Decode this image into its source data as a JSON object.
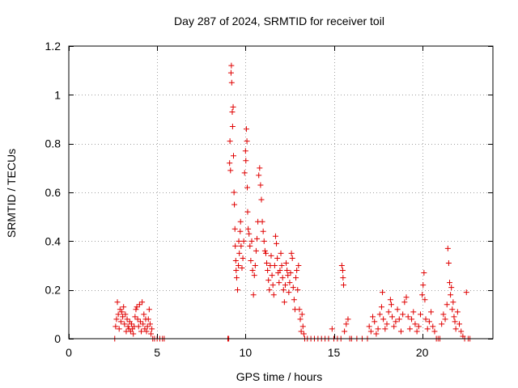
{
  "chart_data": {
    "type": "scatter",
    "title": "Day 287 of 2024, SRMTID for receiver toil",
    "xlabel": "GPS time / hours",
    "ylabel": "SRMTID / TECUs",
    "xlim": [
      0,
      24
    ],
    "ylim": [
      0,
      1.2
    ],
    "xticks": [
      0,
      5,
      10,
      15,
      20
    ],
    "xtick_labels": [
      "0",
      "5",
      "10",
      "15",
      "20"
    ],
    "yticks": [
      0,
      0.2,
      0.4,
      0.6,
      0.8,
      1.0,
      1.2
    ],
    "ytick_labels": [
      "0",
      "0.2",
      "0.4",
      "0.6",
      "0.8",
      "1",
      "1.2"
    ],
    "grid": true,
    "marker": "plus",
    "series": [
      {
        "name": "SRMTID",
        "color": "#e00000",
        "points": [
          [
            2.6,
            0.0
          ],
          [
            2.65,
            0.05
          ],
          [
            2.7,
            0.08
          ],
          [
            2.75,
            0.15
          ],
          [
            2.8,
            0.1
          ],
          [
            2.85,
            0.04
          ],
          [
            2.9,
            0.12
          ],
          [
            2.95,
            0.07
          ],
          [
            3.0,
            0.11
          ],
          [
            3.05,
            0.09
          ],
          [
            3.1,
            0.13
          ],
          [
            3.15,
            0.06
          ],
          [
            3.2,
            0.1
          ],
          [
            3.25,
            0.03
          ],
          [
            3.3,
            0.08
          ],
          [
            3.35,
            0.05
          ],
          [
            3.4,
            0.04
          ],
          [
            3.45,
            0.07
          ],
          [
            3.5,
            0.03
          ],
          [
            3.55,
            0.06
          ],
          [
            3.6,
            0.04
          ],
          [
            3.65,
            0.02
          ],
          [
            3.7,
            0.05
          ],
          [
            3.75,
            0.09
          ],
          [
            3.8,
            0.12
          ],
          [
            3.85,
            0.13
          ],
          [
            3.9,
            0.08
          ],
          [
            3.95,
            0.05
          ],
          [
            4.0,
            0.14
          ],
          [
            4.05,
            0.07
          ],
          [
            4.1,
            0.03
          ],
          [
            4.15,
            0.15
          ],
          [
            4.2,
            0.06
          ],
          [
            4.25,
            0.1
          ],
          [
            4.3,
            0.04
          ],
          [
            4.35,
            0.08
          ],
          [
            4.4,
            0.03
          ],
          [
            4.45,
            0.05
          ],
          [
            4.5,
            0.08
          ],
          [
            4.55,
            0.12
          ],
          [
            4.6,
            0.06
          ],
          [
            4.65,
            0.02
          ],
          [
            4.7,
            0.04
          ],
          [
            4.75,
            0.0
          ],
          [
            4.85,
            0.0
          ],
          [
            5.0,
            0.0
          ],
          [
            5.15,
            0.0
          ],
          [
            5.3,
            0.0
          ],
          [
            5.4,
            0.0
          ],
          [
            9.0,
            0.0
          ],
          [
            9.05,
            0.0
          ],
          [
            9.1,
            0.72
          ],
          [
            9.12,
            0.81
          ],
          [
            9.15,
            0.69
          ],
          [
            9.18,
            1.09
          ],
          [
            9.2,
            1.12
          ],
          [
            9.22,
            1.05
          ],
          [
            9.25,
            0.93
          ],
          [
            9.27,
            0.87
          ],
          [
            9.3,
            0.95
          ],
          [
            9.32,
            0.75
          ],
          [
            9.35,
            0.6
          ],
          [
            9.37,
            0.55
          ],
          [
            9.4,
            0.45
          ],
          [
            9.42,
            0.38
          ],
          [
            9.45,
            0.32
          ],
          [
            9.47,
            0.28
          ],
          [
            9.5,
            0.25
          ],
          [
            9.55,
            0.2
          ],
          [
            9.6,
            0.3
          ],
          [
            9.62,
            0.4
          ],
          [
            9.65,
            0.35
          ],
          [
            9.7,
            0.44
          ],
          [
            9.72,
            0.48
          ],
          [
            9.75,
            0.38
          ],
          [
            9.8,
            0.29
          ],
          [
            9.85,
            0.33
          ],
          [
            9.9,
            0.4
          ],
          [
            9.95,
            0.68
          ],
          [
            10.0,
            0.77
          ],
          [
            10.02,
            0.73
          ],
          [
            10.05,
            0.86
          ],
          [
            10.08,
            0.81
          ],
          [
            10.1,
            0.62
          ],
          [
            10.12,
            0.52
          ],
          [
            10.15,
            0.45
          ],
          [
            10.2,
            0.43
          ],
          [
            10.25,
            0.38
          ],
          [
            10.3,
            0.32
          ],
          [
            10.35,
            0.4
          ],
          [
            10.4,
            0.28
          ],
          [
            10.45,
            0.18
          ],
          [
            10.5,
            0.26
          ],
          [
            10.55,
            0.3
          ],
          [
            10.6,
            0.36
          ],
          [
            10.65,
            0.41
          ],
          [
            10.7,
            0.48
          ],
          [
            10.75,
            0.67
          ],
          [
            10.8,
            0.7
          ],
          [
            10.85,
            0.63
          ],
          [
            10.9,
            0.57
          ],
          [
            10.95,
            0.48
          ],
          [
            11.0,
            0.44
          ],
          [
            11.05,
            0.4
          ],
          [
            11.1,
            0.36
          ],
          [
            11.15,
            0.35
          ],
          [
            11.2,
            0.31
          ],
          [
            11.25,
            0.28
          ],
          [
            11.3,
            0.24
          ],
          [
            11.35,
            0.2
          ],
          [
            11.4,
            0.3
          ],
          [
            11.45,
            0.34
          ],
          [
            11.5,
            0.26
          ],
          [
            11.55,
            0.22
          ],
          [
            11.6,
            0.18
          ],
          [
            11.65,
            0.3
          ],
          [
            11.7,
            0.42
          ],
          [
            11.75,
            0.39
          ],
          [
            11.8,
            0.33
          ],
          [
            11.85,
            0.27
          ],
          [
            11.9,
            0.23
          ],
          [
            11.95,
            0.28
          ],
          [
            12.0,
            0.35
          ],
          [
            12.05,
            0.3
          ],
          [
            12.1,
            0.25
          ],
          [
            12.15,
            0.2
          ],
          [
            12.2,
            0.15
          ],
          [
            12.25,
            0.22
          ],
          [
            12.3,
            0.31
          ],
          [
            12.35,
            0.28
          ],
          [
            12.4,
            0.26
          ],
          [
            12.45,
            0.19
          ],
          [
            12.5,
            0.23
          ],
          [
            12.55,
            0.27
          ],
          [
            12.6,
            0.35
          ],
          [
            12.65,
            0.33
          ],
          [
            12.7,
            0.21
          ],
          [
            12.75,
            0.16
          ],
          [
            12.8,
            0.12
          ],
          [
            12.85,
            0.25
          ],
          [
            12.9,
            0.28
          ],
          [
            12.95,
            0.2
          ],
          [
            13.0,
            0.3
          ],
          [
            13.05,
            0.12
          ],
          [
            13.1,
            0.08
          ],
          [
            13.15,
            0.03
          ],
          [
            13.2,
            0.1
          ],
          [
            13.25,
            0.05
          ],
          [
            13.3,
            0.02
          ],
          [
            13.35,
            0.0
          ],
          [
            13.5,
            0.0
          ],
          [
            13.7,
            0.0
          ],
          [
            13.9,
            0.0
          ],
          [
            14.1,
            0.0
          ],
          [
            14.3,
            0.0
          ],
          [
            14.5,
            0.0
          ],
          [
            14.7,
            0.0
          ],
          [
            14.9,
            0.04
          ],
          [
            15.0,
            0.0
          ],
          [
            15.2,
            0.0
          ],
          [
            15.4,
            0.0
          ],
          [
            15.45,
            0.3
          ],
          [
            15.5,
            0.28
          ],
          [
            15.52,
            0.25
          ],
          [
            15.55,
            0.22
          ],
          [
            15.6,
            0.03
          ],
          [
            15.7,
            0.06
          ],
          [
            15.8,
            0.08
          ],
          [
            15.9,
            0.0
          ],
          [
            16.0,
            0.0
          ],
          [
            16.3,
            0.0
          ],
          [
            16.6,
            0.0
          ],
          [
            16.9,
            0.0
          ],
          [
            17.0,
            0.05
          ],
          [
            17.1,
            0.03
          ],
          [
            17.2,
            0.09
          ],
          [
            17.3,
            0.07
          ],
          [
            17.4,
            0.02
          ],
          [
            17.5,
            0.04
          ],
          [
            17.6,
            0.1
          ],
          [
            17.7,
            0.13
          ],
          [
            17.75,
            0.19
          ],
          [
            17.8,
            0.08
          ],
          [
            17.9,
            0.04
          ],
          [
            18.0,
            0.06
          ],
          [
            18.1,
            0.11
          ],
          [
            18.2,
            0.16
          ],
          [
            18.25,
            0.14
          ],
          [
            18.3,
            0.09
          ],
          [
            18.4,
            0.05
          ],
          [
            18.5,
            0.07
          ],
          [
            18.6,
            0.12
          ],
          [
            18.7,
            0.08
          ],
          [
            18.8,
            0.03
          ],
          [
            18.9,
            0.1
          ],
          [
            19.0,
            0.15
          ],
          [
            19.1,
            0.17
          ],
          [
            19.2,
            0.09
          ],
          [
            19.3,
            0.04
          ],
          [
            19.4,
            0.08
          ],
          [
            19.5,
            0.11
          ],
          [
            19.6,
            0.06
          ],
          [
            19.7,
            0.03
          ],
          [
            19.8,
            0.05
          ],
          [
            19.9,
            0.1
          ],
          [
            20.0,
            0.18
          ],
          [
            20.05,
            0.22
          ],
          [
            20.1,
            0.27
          ],
          [
            20.15,
            0.16
          ],
          [
            20.2,
            0.08
          ],
          [
            20.3,
            0.04
          ],
          [
            20.4,
            0.07
          ],
          [
            20.5,
            0.11
          ],
          [
            20.6,
            0.05
          ],
          [
            20.7,
            0.03
          ],
          [
            20.8,
            0.0
          ],
          [
            20.9,
            0.0
          ],
          [
            21.0,
            0.0
          ],
          [
            21.1,
            0.06
          ],
          [
            21.2,
            0.1
          ],
          [
            21.3,
            0.08
          ],
          [
            21.4,
            0.14
          ],
          [
            21.45,
            0.37
          ],
          [
            21.5,
            0.31
          ],
          [
            21.55,
            0.23
          ],
          [
            21.6,
            0.18
          ],
          [
            21.65,
            0.21
          ],
          [
            21.7,
            0.12
          ],
          [
            21.75,
            0.15
          ],
          [
            21.8,
            0.09
          ],
          [
            21.85,
            0.07
          ],
          [
            21.9,
            0.04
          ],
          [
            22.0,
            0.11
          ],
          [
            22.1,
            0.06
          ],
          [
            22.2,
            0.03
          ],
          [
            22.3,
            0.01
          ],
          [
            22.4,
            0.0
          ],
          [
            22.5,
            0.19
          ],
          [
            22.6,
            0.0
          ],
          [
            22.7,
            0.0
          ]
        ]
      }
    ]
  }
}
